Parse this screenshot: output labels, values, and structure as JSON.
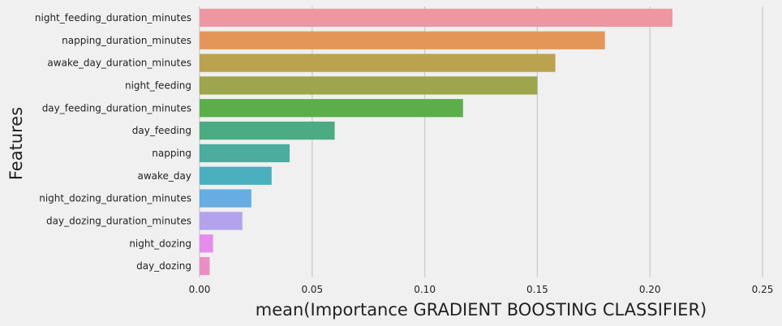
{
  "chart_data": {
    "type": "bar",
    "orientation": "horizontal",
    "title": "",
    "xlabel": "mean(Importance GRADIENT BOOSTING CLASSIFIER)",
    "ylabel": "Features",
    "xlim": [
      0,
      0.25
    ],
    "x_ticks": [
      "0.00",
      "0.05",
      "0.10",
      "0.15",
      "0.20",
      "0.25"
    ],
    "grid": "vertical",
    "categories": [
      "night_feeding_duration_minutes",
      "napping_duration_minutes",
      "awake_day_duration_minutes",
      "night_feeding",
      "day_feeding_duration_minutes",
      "day_feeding",
      "napping",
      "awake_day",
      "night_dozing_duration_minutes",
      "day_dozing_duration_minutes",
      "night_dozing",
      "day_dozing"
    ],
    "values": [
      0.21,
      0.18,
      0.158,
      0.15,
      0.117,
      0.06,
      0.04,
      0.032,
      0.023,
      0.019,
      0.006,
      0.0045
    ],
    "colors": [
      "#ed97a2",
      "#e4965a",
      "#bba24f",
      "#9da64d",
      "#5cae4b",
      "#4bab82",
      "#4aad9e",
      "#4aafbf",
      "#67ade2",
      "#b3a3ec",
      "#e58ded",
      "#e98fc4"
    ]
  }
}
